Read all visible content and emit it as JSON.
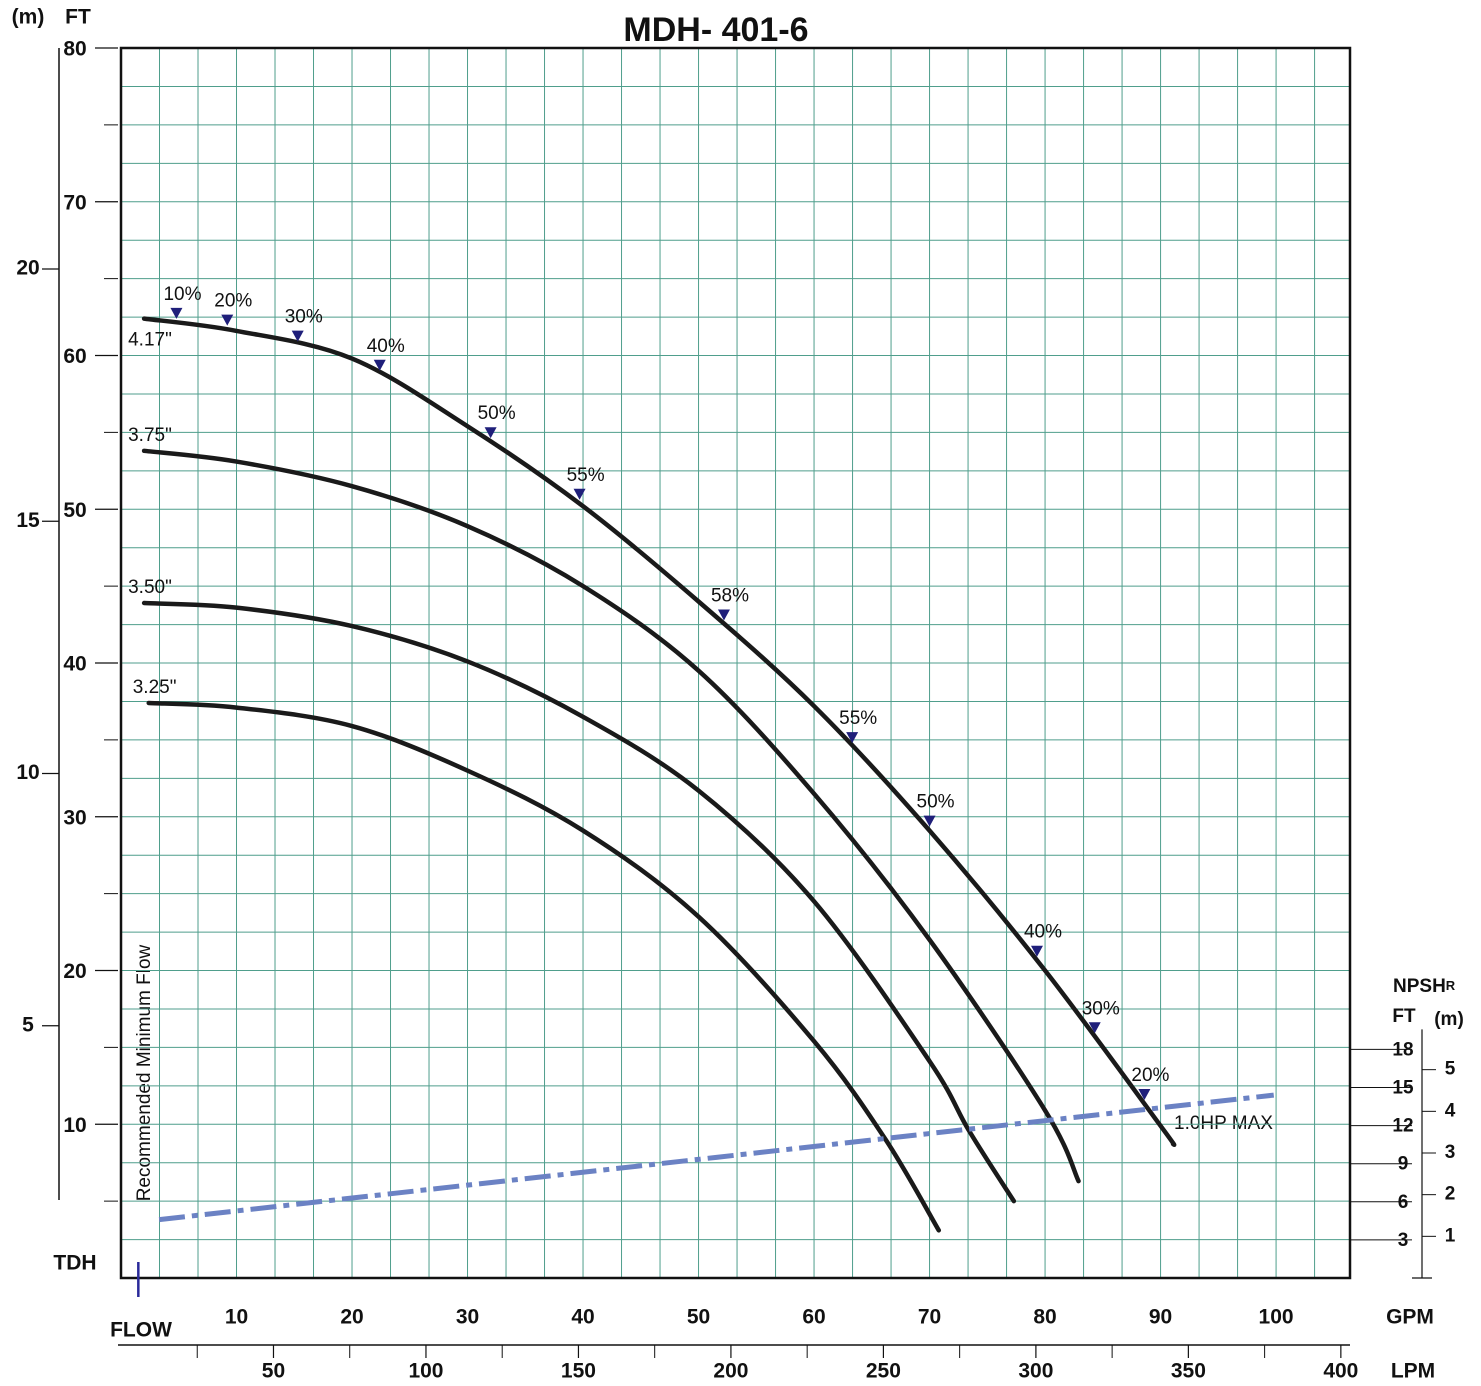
{
  "chart_data": {
    "type": "line",
    "title": "MDH- 401-6",
    "x_label": "GPM",
    "x2_label": "LPM",
    "flow_label": "FLOW",
    "y_label": "FT",
    "y_m_label": "(m)",
    "tdh_label": "TDH",
    "xlim": [
      0,
      106.4
    ],
    "xticks": [
      10,
      20,
      30,
      40,
      50,
      60,
      70,
      80,
      90,
      100
    ],
    "x2lim": [
      0,
      403
    ],
    "x2ticks": [
      50,
      100,
      150,
      200,
      250,
      300,
      350,
      400
    ],
    "ylim": [
      0,
      80
    ],
    "yticks": [
      10,
      20,
      30,
      40,
      50,
      60,
      70,
      80
    ],
    "ymlim": [
      0,
      24.38
    ],
    "ymticks": [
      5,
      10,
      15,
      20
    ],
    "grid": true,
    "npsh_title": "NPSH",
    "npsh_subscript": "R",
    "y2_label": "FT",
    "y2_m_label": "(m)",
    "y2lim": [
      0,
      96.85
    ],
    "y2ticks": [
      3,
      6,
      9,
      12,
      15,
      18
    ],
    "y2mlim": [
      0,
      29.52
    ],
    "y2mticks": [
      1,
      2,
      3,
      4,
      5
    ],
    "min_flow_label": "Recommended Minimum Flow",
    "min_flow": 1.5,
    "hp_label": "1.0HP MAX",
    "series": [
      {
        "name": "4.17\"",
        "color": "#1a1a1a",
        "x": [
          2,
          10,
          20,
          30,
          40,
          50,
          60,
          70,
          80,
          90,
          91.1
        ],
        "values": [
          62.4,
          61.6,
          59.8,
          55.4,
          50.2,
          44.0,
          37.2,
          29.1,
          20.0,
          9.9,
          8.7
        ]
      },
      {
        "name": "3.75\"",
        "color": "#1a1a1a",
        "x": [
          2,
          10,
          20,
          30,
          40,
          50,
          60,
          70,
          80,
          82.9
        ],
        "values": [
          53.8,
          53.1,
          51.5,
          48.9,
          45.0,
          39.5,
          31.5,
          22.0,
          10.9,
          6.3
        ]
      },
      {
        "name": "3.50\"",
        "color": "#1a1a1a",
        "x": [
          2,
          10,
          20,
          30,
          40,
          50,
          60,
          70,
          73.4,
          77.3
        ],
        "values": [
          43.9,
          43.6,
          42.4,
          40.1,
          36.5,
          31.7,
          24.5,
          14.1,
          9.6,
          5.0
        ]
      },
      {
        "name": "3.25\"",
        "color": "#1a1a1a",
        "x": [
          2.4,
          10,
          20,
          30,
          40,
          50,
          60,
          66.2,
          70.8
        ],
        "values": [
          37.4,
          37.1,
          35.9,
          33.0,
          29.1,
          23.5,
          15.4,
          9.0,
          3.1
        ]
      },
      {
        "color": "#6b82c4",
        "axis": "y2",
        "x": [
          3.3,
          99.8
        ],
        "values": [
          4.6,
          14.4
        ]
      }
    ],
    "efficiency_points": [
      {
        "x": 4.8,
        "label": "10%"
      },
      {
        "x": 9.2,
        "label": "20%"
      },
      {
        "x": 15.3,
        "label": "30%"
      },
      {
        "x": 22.4,
        "label": "40%"
      },
      {
        "x": 32.0,
        "label": "50%"
      },
      {
        "x": 39.7,
        "label": "55%"
      },
      {
        "x": 52.2,
        "label": "58%"
      },
      {
        "x": 63.3,
        "label": "55%"
      },
      {
        "x": 70.0,
        "label": "50%"
      },
      {
        "x": 79.3,
        "label": "40%"
      },
      {
        "x": 84.3,
        "label": "30%"
      },
      {
        "x": 88.6,
        "label": "20%"
      }
    ],
    "marker_color": "#1f1f7a"
  }
}
